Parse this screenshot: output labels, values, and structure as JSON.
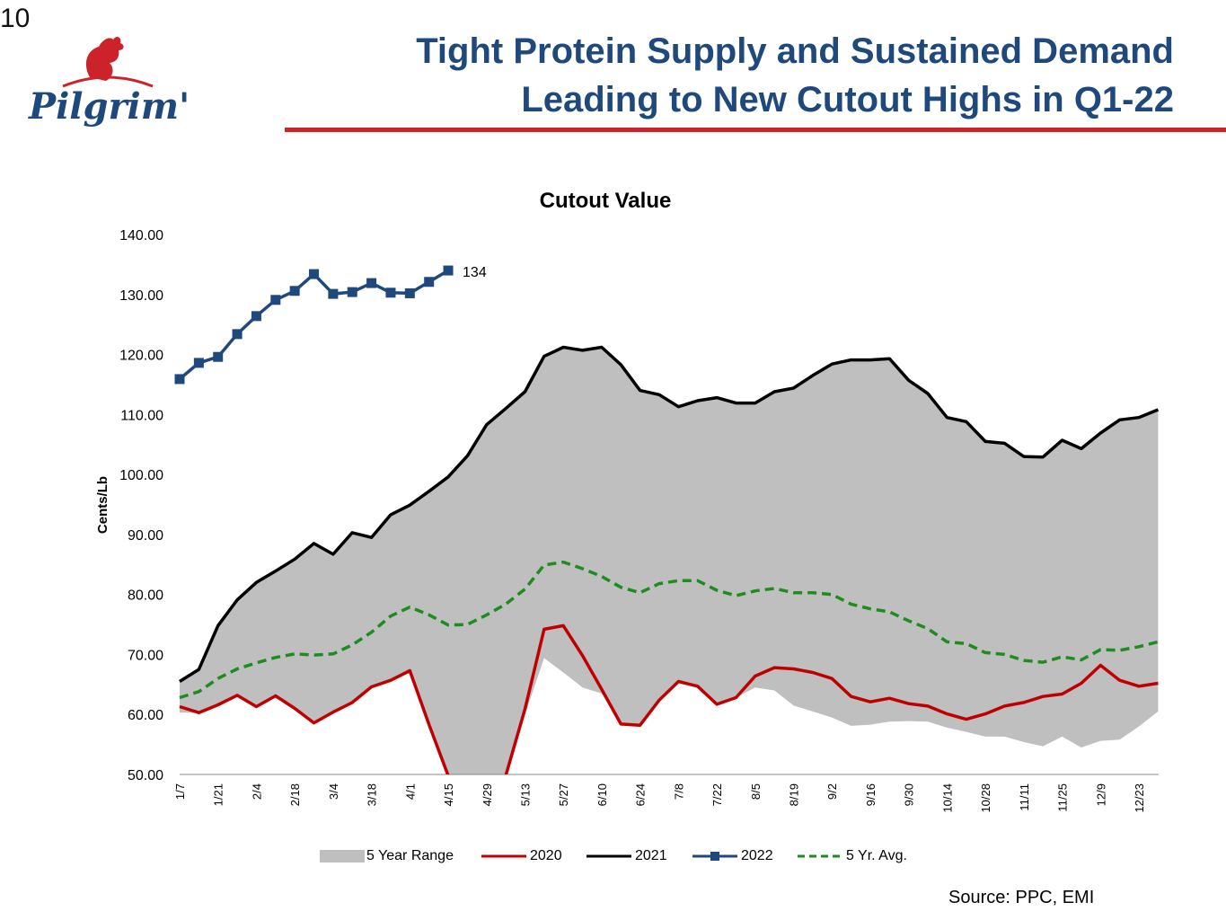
{
  "page_number": "10",
  "logo": {
    "text": "Pilgrim's",
    "icon": "rooster-icon",
    "brand_color": "#1f497d",
    "accent_color": "#cc2229"
  },
  "title": {
    "line1": "Tight Protein Supply and Sustained Demand",
    "line2": "Leading to New Cutout Highs in Q1-22",
    "color": "#1f497d",
    "rule_color": "#cc2229"
  },
  "source": "Source:  PPC, EMI",
  "chart_data": {
    "type": "line",
    "title": "Cutout Value",
    "ylabel": "Cents/Lb",
    "xlabel": "",
    "ylim": [
      50,
      140
    ],
    "yticks": [
      "50.00",
      "60.00",
      "70.00",
      "80.00",
      "90.00",
      "100.00",
      "110.00",
      "120.00",
      "130.00",
      "140.00"
    ],
    "x_ticks": [
      "1/7",
      "1/21",
      "2/4",
      "2/18",
      "3/4",
      "3/18",
      "4/1",
      "4/15",
      "4/29",
      "5/13",
      "5/27",
      "6/10",
      "6/24",
      "7/8",
      "7/22",
      "8/5",
      "8/19",
      "9/2",
      "9/16",
      "9/30",
      "10/14",
      "10/28",
      "11/11",
      "11/25",
      "12/9",
      "12/23"
    ],
    "grid": false,
    "legend_position": "bottom",
    "range": {
      "name": "5 Year Range",
      "color": "#bfbfbf",
      "lower": [
        60.3,
        60.3,
        61.6,
        63.2,
        61.3,
        63.1,
        61.0,
        58.6,
        60.4,
        62.0,
        64.6,
        65.7,
        67.3,
        58.3,
        49.8,
        48.0,
        48.0,
        49.8,
        60.0,
        69.4,
        67.0,
        64.5,
        63.5,
        58.4,
        58.2,
        62.4,
        65.5,
        64.7,
        61.7,
        62.8,
        64.5,
        64.0,
        61.5,
        60.5,
        59.5,
        58.1,
        58.3,
        58.8,
        58.9,
        58.8,
        57.8,
        57.1,
        56.3,
        56.3,
        55.4,
        54.7,
        56.3,
        54.5,
        55.6,
        55.8,
        58.0,
        60.5
      ],
      "upper": [
        65.5,
        67.5,
        74.8,
        79.1,
        82.0,
        83.9,
        85.9,
        88.5,
        86.7,
        90.3,
        89.5,
        93.3,
        94.9,
        97.2,
        99.6,
        103.1,
        108.3,
        111.0,
        113.8,
        119.7,
        121.2,
        120.7,
        121.2,
        118.3,
        114.0,
        113.3,
        111.3,
        112.3,
        112.8,
        111.9,
        111.9,
        113.8,
        114.4,
        116.5,
        118.4,
        119.1,
        119.1,
        119.3,
        115.7,
        113.5,
        109.5,
        108.8,
        105.5,
        105.2,
        103.0,
        102.9,
        105.7,
        104.3,
        106.9,
        109.1,
        109.5,
        110.8
      ]
    },
    "series": [
      {
        "name": "2020",
        "color": "#c00000",
        "style": "solid",
        "values": [
          61.3,
          60.3,
          61.6,
          63.2,
          61.3,
          63.1,
          61.0,
          58.6,
          60.4,
          62.0,
          64.6,
          65.7,
          67.3,
          58.3,
          49.8,
          48.0,
          48.0,
          49.8,
          60.9,
          74.2,
          74.8,
          69.8,
          64.2,
          58.4,
          58.2,
          62.4,
          65.5,
          64.7,
          61.7,
          62.8,
          66.4,
          67.8,
          67.6,
          67.0,
          66.0,
          63.0,
          62.1,
          62.7,
          61.8,
          61.4,
          60.1,
          59.2,
          60.1,
          61.4,
          62.0,
          63.0,
          63.4,
          65.2,
          68.2,
          65.7,
          64.7,
          65.2
        ]
      },
      {
        "name": "2021",
        "color": "#000000",
        "style": "solid",
        "values": [
          65.5,
          67.5,
          74.8,
          79.1,
          82.0,
          83.9,
          85.9,
          88.5,
          86.7,
          90.3,
          89.5,
          93.3,
          94.9,
          97.2,
          99.6,
          103.1,
          108.3,
          111.0,
          113.8,
          119.7,
          121.2,
          120.7,
          121.2,
          118.3,
          114.0,
          113.3,
          111.3,
          112.3,
          112.8,
          111.9,
          111.9,
          113.8,
          114.4,
          116.5,
          118.4,
          119.1,
          119.1,
          119.3,
          115.7,
          113.5,
          109.5,
          108.8,
          105.5,
          105.2,
          103.0,
          102.9,
          105.7,
          104.3,
          106.9,
          109.1,
          109.5,
          110.8
        ]
      },
      {
        "name": "2022",
        "color": "#1f497d",
        "style": "solid",
        "markers": true,
        "values": [
          115.9,
          118.6,
          119.6,
          123.4,
          126.4,
          129.1,
          130.6,
          133.4,
          130.1,
          130.4,
          131.9,
          130.3,
          130.2,
          132.1,
          134.0
        ],
        "end_label": "134"
      },
      {
        "name": "5 Yr. Avg.",
        "color": "#1e8c1e",
        "style": "dashed",
        "values": [
          62.8,
          63.8,
          66.0,
          67.6,
          68.6,
          69.5,
          70.1,
          69.9,
          70.1,
          71.6,
          73.7,
          76.4,
          77.9,
          76.6,
          74.9,
          75.0,
          76.6,
          78.4,
          80.9,
          84.9,
          85.4,
          84.3,
          83.0,
          81.2,
          80.3,
          81.8,
          82.3,
          82.3,
          80.7,
          79.8,
          80.6,
          81.0,
          80.3,
          80.3,
          80.0,
          78.4,
          77.6,
          77.1,
          75.6,
          74.3,
          72.1,
          71.8,
          70.3,
          70.0,
          69.0,
          68.7,
          69.6,
          69.1,
          70.8,
          70.7,
          71.3,
          72.1
        ]
      }
    ]
  }
}
